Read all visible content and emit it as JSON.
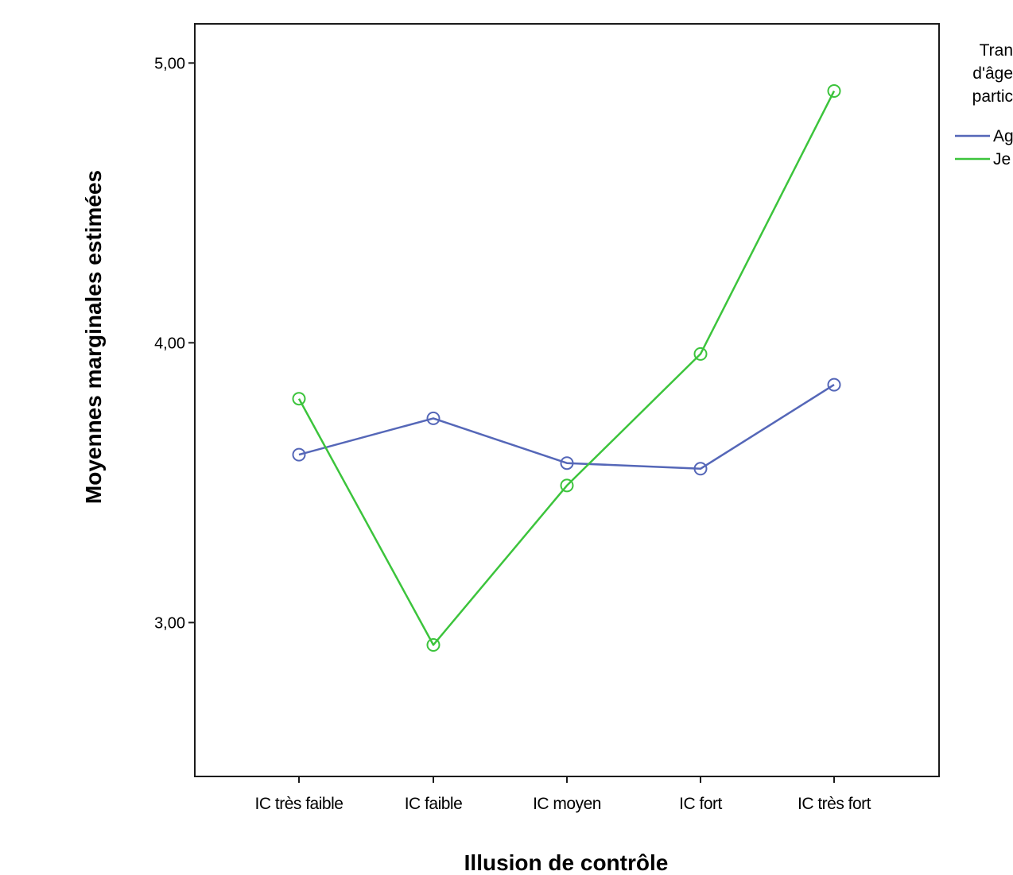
{
  "chart_data": {
    "type": "line",
    "xlabel": "Illusion de contrôle",
    "ylabel": "Moyennes marginales estimées",
    "categories": [
      "IC très faible",
      "IC faible",
      "IC moyen",
      "IC fort",
      "IC très fort"
    ],
    "yticks": [
      "3,00",
      "4,00",
      "5,00"
    ],
    "ytick_values": [
      3.0,
      4.0,
      5.0
    ],
    "ylim": [
      2.45,
      5.14
    ],
    "grid": false,
    "legend": {
      "title_lines": [
        "Tran",
        "d'âge",
        "partic"
      ],
      "entries": [
        "Ag",
        "Je"
      ],
      "placement": "right"
    },
    "series": [
      {
        "name": "Ag",
        "color": "#5567b8",
        "values": [
          3.6,
          3.73,
          3.57,
          3.55,
          3.85
        ]
      },
      {
        "name": "Je",
        "color": "#3cc43c",
        "values": [
          3.8,
          2.92,
          3.49,
          3.96,
          4.9
        ]
      }
    ]
  }
}
